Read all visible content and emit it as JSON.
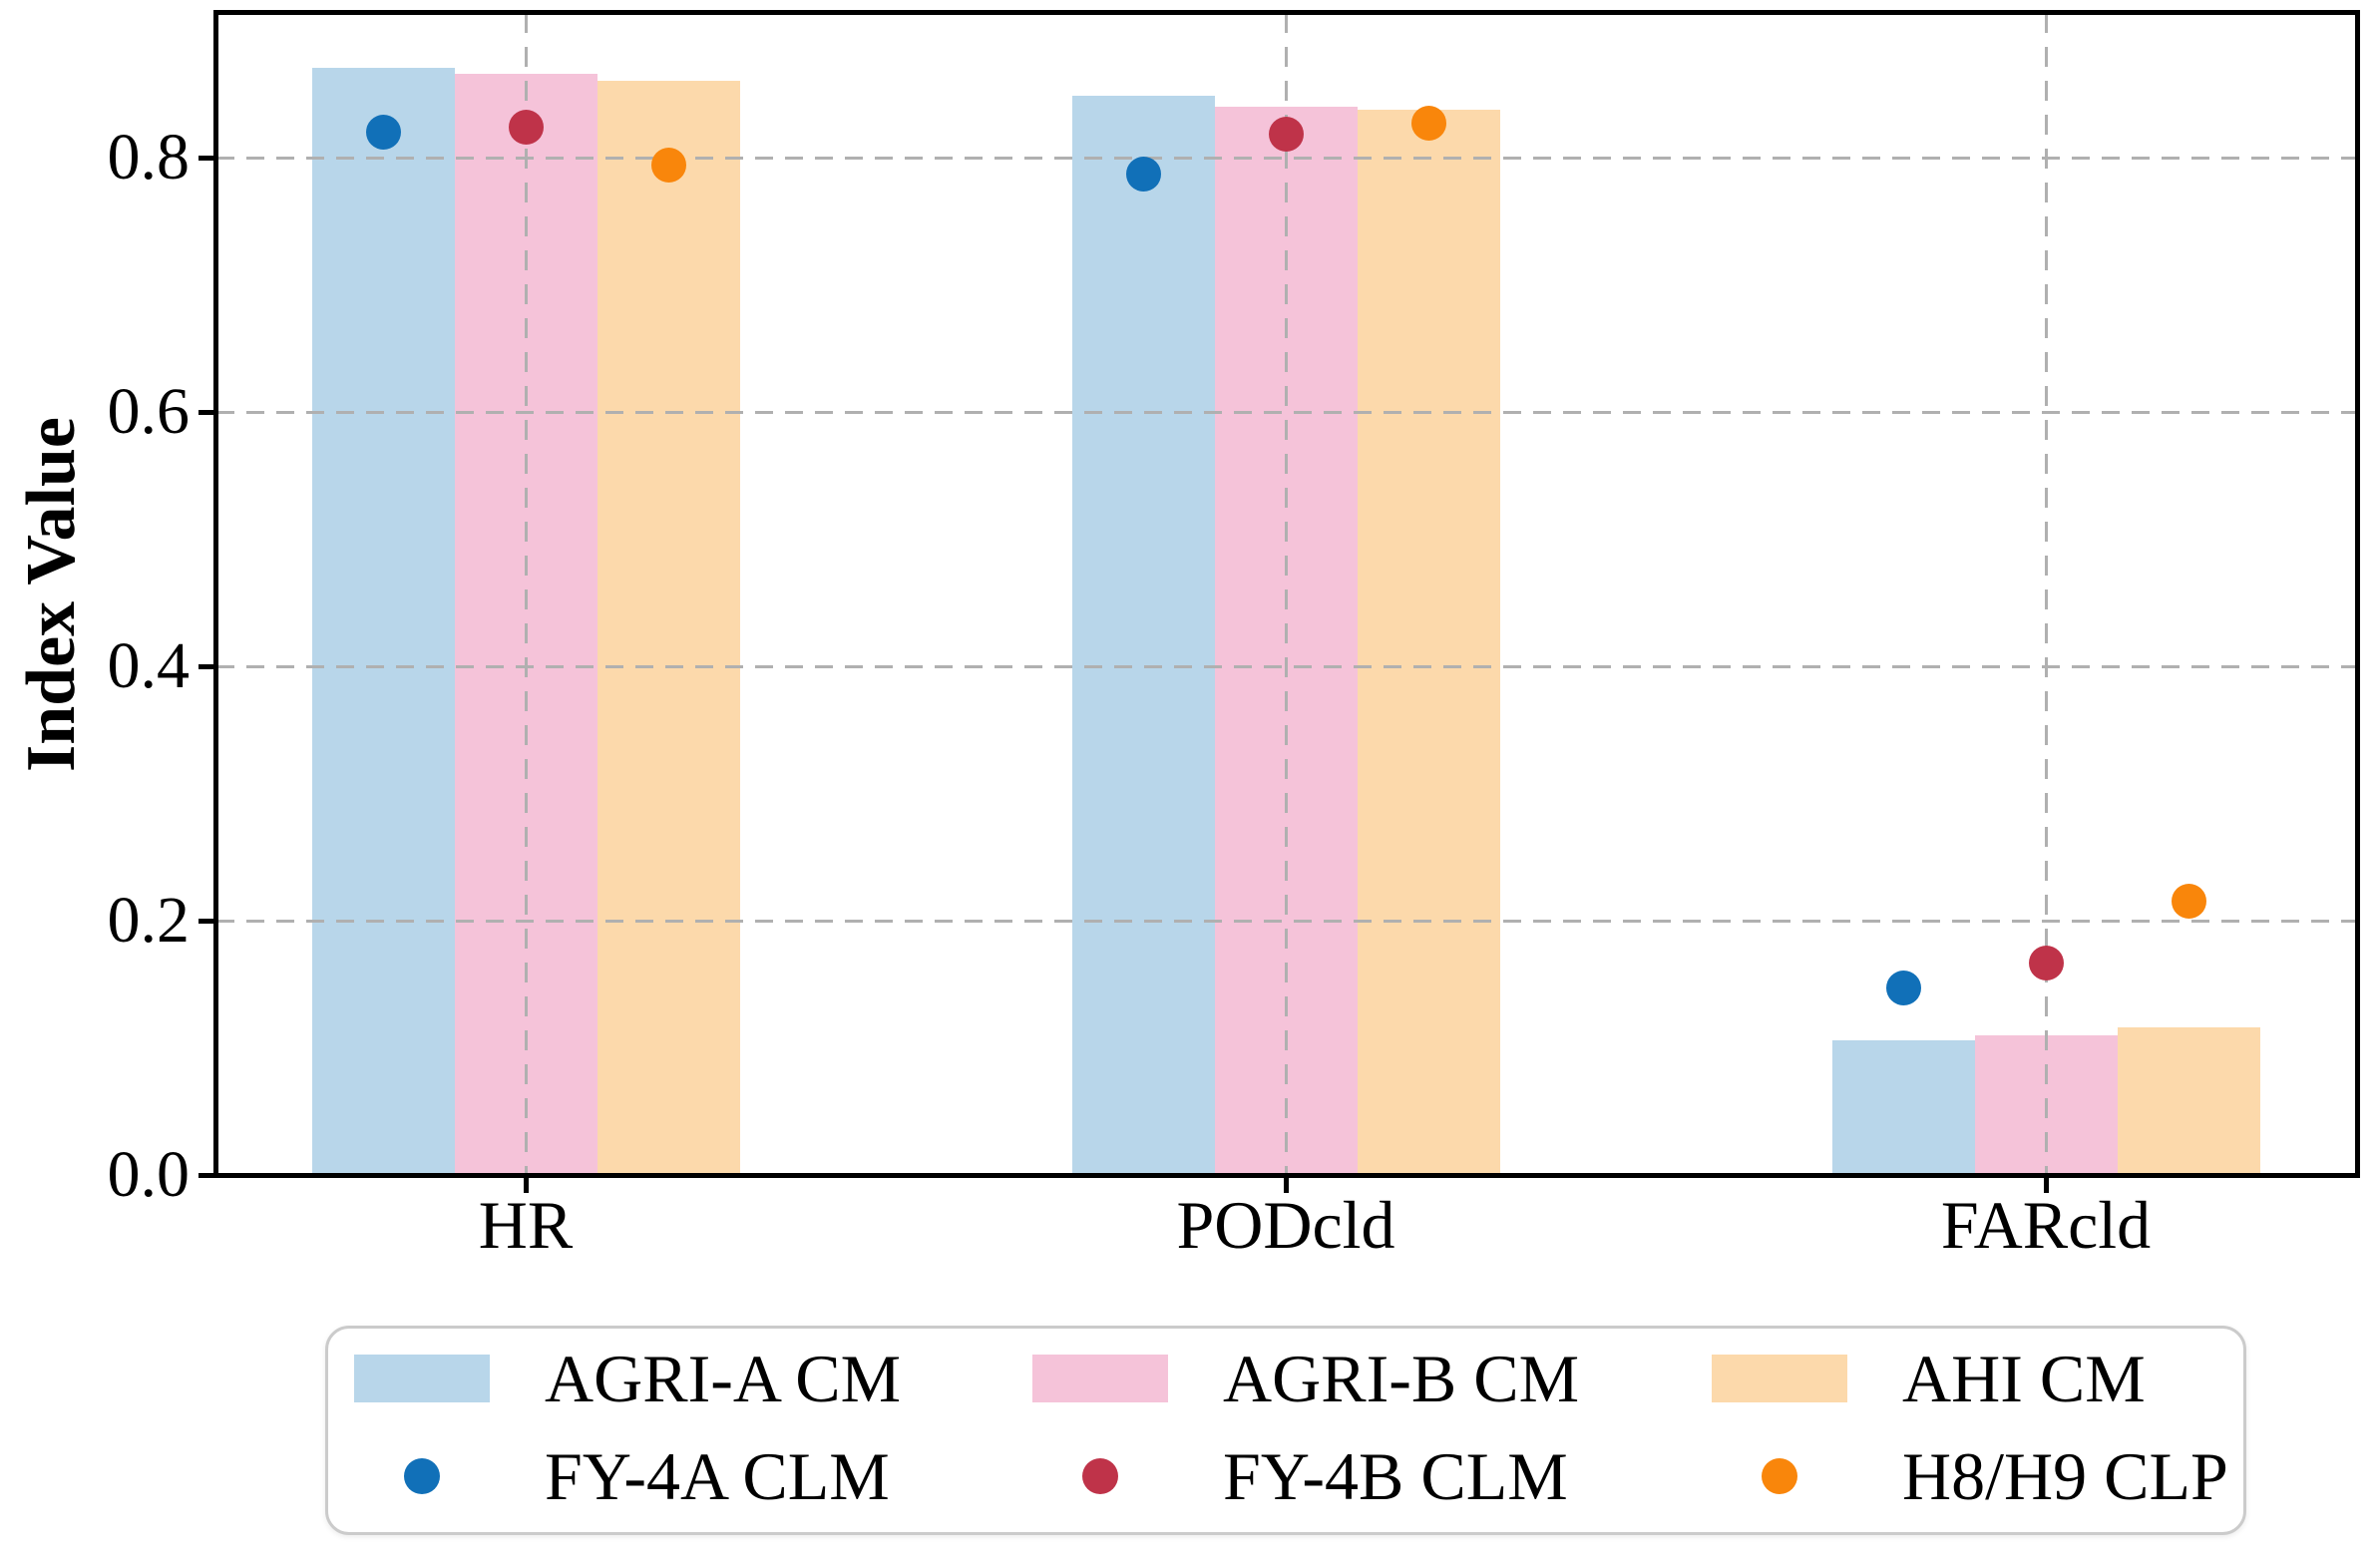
{
  "chart_data": {
    "type": "bar",
    "title": "",
    "xlabel": "",
    "ylabel": "Index Value",
    "categories": [
      "HR",
      "PODcld",
      "FARcld"
    ],
    "series": [
      {
        "name": "AGRI-A CM",
        "marker": "bar",
        "color": "#b8d6ea",
        "values": [
          0.871,
          0.849,
          0.106
        ]
      },
      {
        "name": "AGRI-B CM",
        "marker": "bar",
        "color": "#f5c3d9",
        "values": [
          0.866,
          0.84,
          0.11
        ]
      },
      {
        "name": "AHI CM",
        "marker": "bar",
        "color": "#fcd9ab",
        "values": [
          0.861,
          0.838,
          0.116
        ]
      }
    ],
    "marker_series": [
      {
        "name": "FY-4A CLM",
        "marker": "dot",
        "color": "#1170b8",
        "values": [
          0.82,
          0.787,
          0.147
        ]
      },
      {
        "name": "FY-4B CLM",
        "marker": "dot",
        "color": "#bf3349",
        "values": [
          0.824,
          0.819,
          0.167
        ]
      },
      {
        "name": "H8/H9 CLP",
        "marker": "dot",
        "color": "#f9860b",
        "values": [
          0.794,
          0.827,
          0.215
        ]
      }
    ],
    "ylim": [
      0,
      0.914
    ],
    "yticks": [
      0,
      0.2,
      0.4,
      0.6,
      0.8
    ],
    "ytick_labels": [
      "0.0",
      "0.2",
      "0.4",
      "0.6",
      "0.8"
    ],
    "grid": "dashed, horizontal at yticks and vertical at category centers, drawn above bars",
    "gridline_color": "#b0b0b0",
    "legend_position": "bottom"
  }
}
